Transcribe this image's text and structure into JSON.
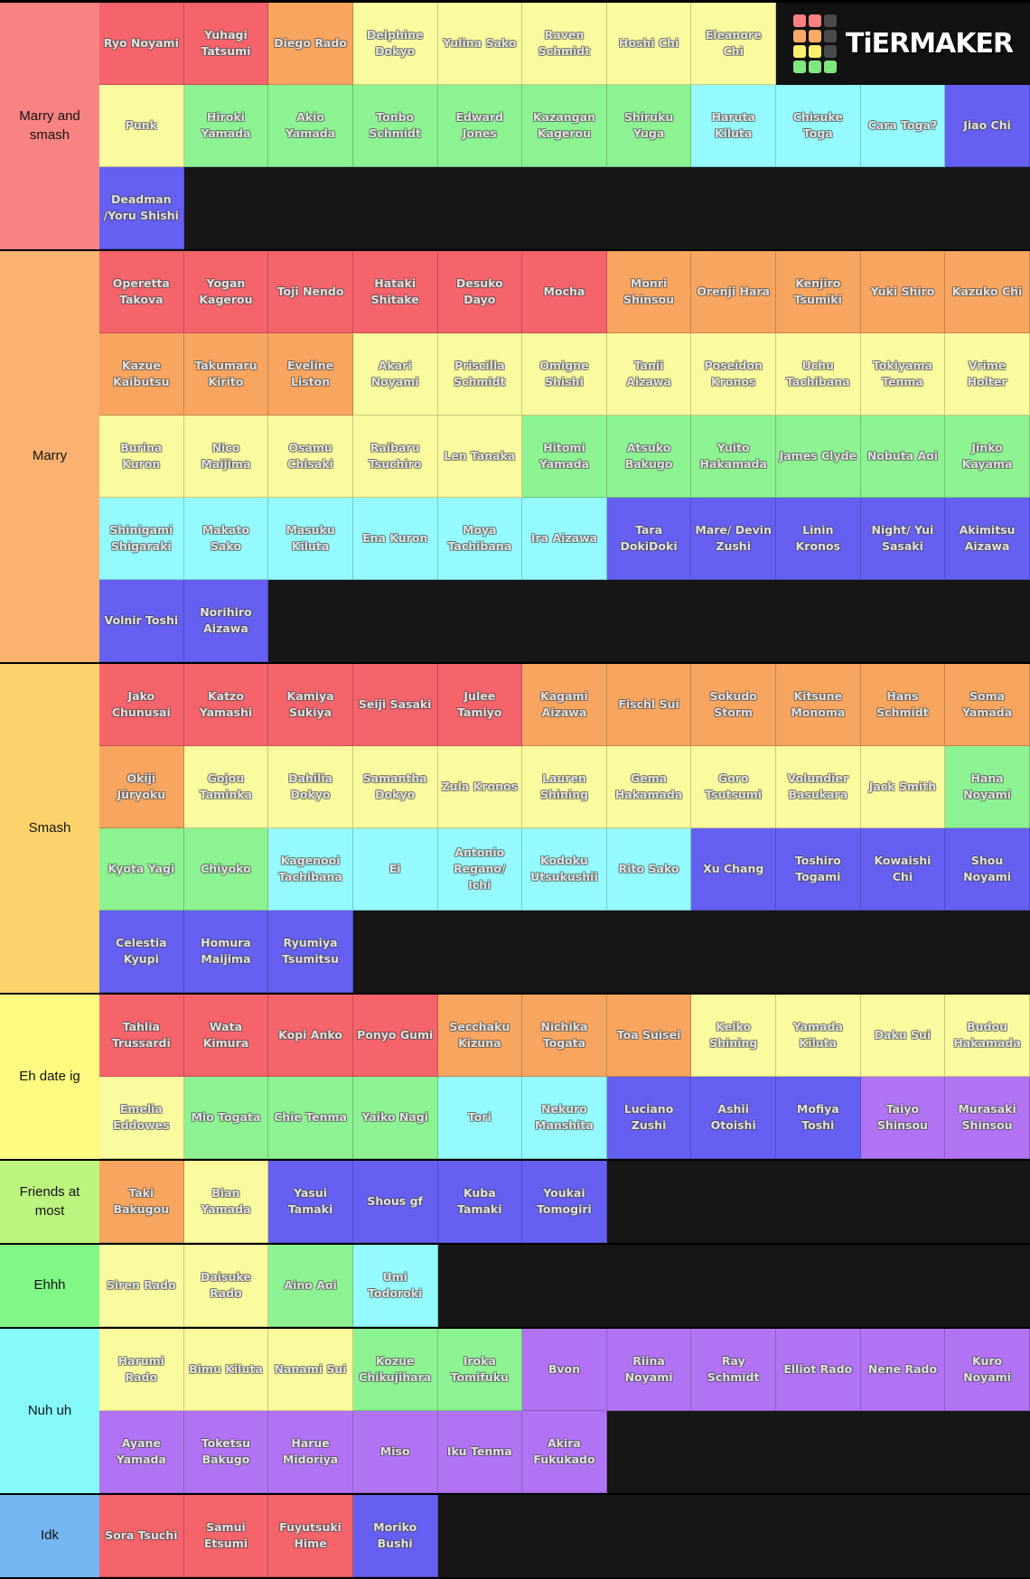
{
  "logo": {
    "text": "TiERMAKER",
    "grid": [
      "#f8807f",
      "#f8807f",
      "#4a4a4a",
      "#f9ab66",
      "#f9ab66",
      "#4a4a4a",
      "#f9ef6c",
      "#f9ef6c",
      "#4a4a4a",
      "#7ee87e",
      "#7ee87e",
      "#7ee87e"
    ]
  },
  "palette": {
    "red": "#f5636b",
    "orange": "#f8a55f",
    "yellow": "#fafa9e",
    "green": "#8df292",
    "cyan": "#94fafd",
    "blue": "#6560f1",
    "purple": "#b173f4"
  },
  "tiers": [
    {
      "label": "Marry and smash",
      "color": "#f98383",
      "rows": [
        [
          {
            "n": "Ryo Noyami",
            "c": "red"
          },
          {
            "n": "Yuhagi Tatsumi",
            "c": "red"
          },
          {
            "n": "Diego Rado",
            "c": "orange"
          },
          {
            "n": "Delphine Dokyo",
            "c": "yellow"
          },
          {
            "n": "Yulina Sako",
            "c": "yellow"
          },
          {
            "n": "Raven Schmidt",
            "c": "yellow"
          },
          {
            "n": "Hoshi Chi",
            "c": "yellow"
          },
          {
            "n": "Eleanore Chi",
            "c": "yellow"
          }
        ],
        [
          {
            "n": "Punk",
            "c": "yellow"
          },
          {
            "n": "Hiroki Yamada",
            "c": "green"
          },
          {
            "n": "Akio Yamada",
            "c": "green"
          },
          {
            "n": "Tonbo Schmidt",
            "c": "green"
          },
          {
            "n": "Edward Jones",
            "c": "green"
          },
          {
            "n": "Kazangan Kagerou",
            "c": "green"
          },
          {
            "n": "Shiruku Yuga",
            "c": "green"
          },
          {
            "n": "Haruta Kiluta",
            "c": "cyan"
          },
          {
            "n": "Chisuke Toga",
            "c": "cyan"
          },
          {
            "n": "Cara Toga?",
            "c": "cyan"
          },
          {
            "n": "Jiao Chi",
            "c": "blue"
          }
        ],
        [
          {
            "n": "Deadman /Yoru Shishi",
            "c": "blue"
          }
        ]
      ]
    },
    {
      "label": "Marry",
      "color": "#fbb271",
      "rows": [
        [
          {
            "n": "Operetta Takova",
            "c": "red"
          },
          {
            "n": "Yogan Kagerou",
            "c": "red"
          },
          {
            "n": "Toji Nendo",
            "c": "red"
          },
          {
            "n": "Hataki Shitake",
            "c": "red"
          },
          {
            "n": "Desuko Dayo",
            "c": "red"
          },
          {
            "n": "Mocha",
            "c": "red"
          },
          {
            "n": "Monri Shinsou",
            "c": "orange"
          },
          {
            "n": "Orenji Hara",
            "c": "orange"
          },
          {
            "n": "Kenjiro Tsumiki",
            "c": "orange"
          },
          {
            "n": "Yuki Shiro",
            "c": "orange"
          },
          {
            "n": "Kazuko Chi",
            "c": "orange"
          }
        ],
        [
          {
            "n": "Kazue Kaibutsu",
            "c": "orange"
          },
          {
            "n": "Takumaru Kirito",
            "c": "orange"
          },
          {
            "n": "Eveline Liston",
            "c": "orange"
          },
          {
            "n": "Akari Noyami",
            "c": "yellow"
          },
          {
            "n": "Priscilla Schmidt",
            "c": "yellow"
          },
          {
            "n": "Omigne Shishi",
            "c": "yellow"
          },
          {
            "n": "Tanii Aizawa",
            "c": "yellow"
          },
          {
            "n": "Poseidon Kronos",
            "c": "yellow"
          },
          {
            "n": "Uchu Tachibana",
            "c": "yellow"
          },
          {
            "n": "Tokiyama Tenma",
            "c": "yellow"
          },
          {
            "n": "Vrime Holter",
            "c": "yellow"
          }
        ],
        [
          {
            "n": "Burina Kuron",
            "c": "yellow"
          },
          {
            "n": "Nico Maijima",
            "c": "yellow"
          },
          {
            "n": "Osamu Chisaki",
            "c": "yellow"
          },
          {
            "n": "Raibaru Tsuchiro",
            "c": "yellow"
          },
          {
            "n": "Len Tanaka",
            "c": "yellow"
          },
          {
            "n": "Hitomi Yamada",
            "c": "green"
          },
          {
            "n": "Atsuko Bakugo",
            "c": "green"
          },
          {
            "n": "Yuito Hakamada",
            "c": "green"
          },
          {
            "n": "James Clyde",
            "c": "green"
          },
          {
            "n": "Nobuta Aoi",
            "c": "green"
          },
          {
            "n": "Jinko Kayama",
            "c": "green"
          }
        ],
        [
          {
            "n": "Shinigami Shigaraki",
            "c": "cyan"
          },
          {
            "n": "Makato Sako",
            "c": "cyan"
          },
          {
            "n": "Masuku Kiluta",
            "c": "cyan"
          },
          {
            "n": "Ena Kuron",
            "c": "cyan"
          },
          {
            "n": "Moya Tachibana",
            "c": "cyan"
          },
          {
            "n": "Ira Aizawa",
            "c": "cyan"
          },
          {
            "n": "Tara DokiDoki",
            "c": "blue"
          },
          {
            "n": "Mare/ Devin Zushi",
            "c": "blue"
          },
          {
            "n": "Linin Kronos",
            "c": "blue"
          },
          {
            "n": "Night/ Yui Sasaki",
            "c": "blue"
          },
          {
            "n": "Akimitsu Aizawa",
            "c": "blue"
          }
        ],
        [
          {
            "n": "Volnir Toshi",
            "c": "blue"
          },
          {
            "n": "Norihiro Aizawa",
            "c": "blue"
          }
        ]
      ]
    },
    {
      "label": "Smash",
      "color": "#fcd36b",
      "rows": [
        [
          {
            "n": "Jako Chunusai",
            "c": "red"
          },
          {
            "n": "Katzo Yamashi",
            "c": "red"
          },
          {
            "n": "Kamiya Sukiya",
            "c": "red"
          },
          {
            "n": "Seiji Sasaki",
            "c": "red"
          },
          {
            "n": "Julee Tamiyo",
            "c": "red"
          },
          {
            "n": "Kagami Aizawa",
            "c": "orange"
          },
          {
            "n": "Fischl Sui",
            "c": "orange"
          },
          {
            "n": "Sokudo Storm",
            "c": "orange"
          },
          {
            "n": "Kitsune Monoma",
            "c": "orange"
          },
          {
            "n": "Hans Schmidt",
            "c": "orange"
          },
          {
            "n": "Soma Yamada",
            "c": "orange"
          }
        ],
        [
          {
            "n": "Okiji Jūryoku",
            "c": "orange"
          },
          {
            "n": "Gojou Taminka",
            "c": "yellow"
          },
          {
            "n": "Dahilia Dokyo",
            "c": "yellow"
          },
          {
            "n": "Samantha Dokyo",
            "c": "yellow"
          },
          {
            "n": "Zula Kronos",
            "c": "yellow"
          },
          {
            "n": "Lauren Shining",
            "c": "yellow"
          },
          {
            "n": "Gema Hakamada",
            "c": "yellow"
          },
          {
            "n": "Goro Tsutsumi",
            "c": "yellow"
          },
          {
            "n": "Volundier Basukara",
            "c": "yellow"
          },
          {
            "n": "Jack Smith",
            "c": "yellow"
          },
          {
            "n": "Hana Noyami",
            "c": "green"
          }
        ],
        [
          {
            "n": "Kyota Yagi",
            "c": "green"
          },
          {
            "n": "Chiyoko",
            "c": "green"
          },
          {
            "n": "Kagenooi Tachibana",
            "c": "cyan"
          },
          {
            "n": "Ei",
            "c": "cyan"
          },
          {
            "n": "Antonio Regano/ Ichi",
            "c": "cyan"
          },
          {
            "n": "Kodoku Utsukushii",
            "c": "cyan"
          },
          {
            "n": "Rito Sako",
            "c": "cyan"
          },
          {
            "n": "Xu Chang",
            "c": "blue"
          },
          {
            "n": "Toshiro Togami",
            "c": "blue"
          },
          {
            "n": "Kowaishi Chi",
            "c": "blue"
          },
          {
            "n": "Shou Noyami",
            "c": "blue"
          }
        ],
        [
          {
            "n": "Celestia Kyupi",
            "c": "blue"
          },
          {
            "n": "Homura Maijima",
            "c": "blue"
          },
          {
            "n": "Ryumiya Tsumitsu",
            "c": "blue"
          }
        ]
      ]
    },
    {
      "label": "Eh date ig",
      "color": "#fcfa80",
      "rows": [
        [
          {
            "n": "Tahlia Trussardi",
            "c": "red"
          },
          {
            "n": "Wata Kimura",
            "c": "red"
          },
          {
            "n": "Kopi Anko",
            "c": "red"
          },
          {
            "n": "Ponyo Gumi",
            "c": "red"
          },
          {
            "n": "Secchaku Kizuna",
            "c": "orange"
          },
          {
            "n": "Nichika Togata",
            "c": "orange"
          },
          {
            "n": "Toa Suisei",
            "c": "orange"
          },
          {
            "n": "Keiko Shining",
            "c": "yellow"
          },
          {
            "n": "Yamada Kiluta",
            "c": "yellow"
          },
          {
            "n": "Daku Sui",
            "c": "yellow"
          },
          {
            "n": "Budou Hakamada",
            "c": "yellow"
          }
        ],
        [
          {
            "n": "Emelia Eddowes",
            "c": "yellow"
          },
          {
            "n": "Mio Togata",
            "c": "green"
          },
          {
            "n": "Chie Tenma",
            "c": "green"
          },
          {
            "n": "Yaiko Nagi",
            "c": "green"
          },
          {
            "n": "Tori",
            "c": "cyan"
          },
          {
            "n": "Nekuro Manshita",
            "c": "cyan"
          },
          {
            "n": "Luciano Zushi",
            "c": "blue"
          },
          {
            "n": "Ashii Otoishi",
            "c": "blue"
          },
          {
            "n": "Mofiya Toshi",
            "c": "blue"
          },
          {
            "n": "Taiyo Shinsou",
            "c": "purple"
          },
          {
            "n": "Murasaki Shinsou",
            "c": "purple"
          }
        ]
      ]
    },
    {
      "label": "Friends at most",
      "color": "#bdf37f",
      "rows": [
        [
          {
            "n": "Taki Bakugou",
            "c": "orange"
          },
          {
            "n": "Bian Yamada",
            "c": "yellow"
          },
          {
            "n": "Yasui Tamaki",
            "c": "blue"
          },
          {
            "n": "Shous gf",
            "c": "blue"
          },
          {
            "n": "Kuba Tamaki",
            "c": "blue"
          },
          {
            "n": "Youkai Tomogiri",
            "c": "blue"
          }
        ]
      ]
    },
    {
      "label": "Ehhh",
      "color": "#80f787",
      "rows": [
        [
          {
            "n": "Siren Rado",
            "c": "yellow"
          },
          {
            "n": "Daisuke Rado",
            "c": "yellow"
          },
          {
            "n": "Aino Aoi",
            "c": "green"
          },
          {
            "n": "Umi Todoroki",
            "c": "cyan"
          }
        ]
      ]
    },
    {
      "label": "Nuh uh",
      "color": "#86f9f9",
      "rows": [
        [
          {
            "n": "Harumi Rado",
            "c": "yellow"
          },
          {
            "n": "Bimu Kiluta",
            "c": "yellow"
          },
          {
            "n": "Nanami Sui",
            "c": "yellow"
          },
          {
            "n": "Kozue Chikujihara",
            "c": "green"
          },
          {
            "n": "Iroka Tomifuku",
            "c": "green"
          },
          {
            "n": "Bvon",
            "c": "purple"
          },
          {
            "n": "Riina Noyami",
            "c": "purple"
          },
          {
            "n": "Ray Schmidt",
            "c": "purple"
          },
          {
            "n": "Elliot Rado",
            "c": "purple"
          },
          {
            "n": "Nene Rado",
            "c": "purple"
          },
          {
            "n": "Kuro Noyami",
            "c": "purple"
          }
        ],
        [
          {
            "n": "Ayane Yamada",
            "c": "purple"
          },
          {
            "n": "Toketsu Bakugo",
            "c": "purple"
          },
          {
            "n": "Harue Midoriya",
            "c": "purple"
          },
          {
            "n": "Miso",
            "c": "purple"
          },
          {
            "n": "Iku Tenma",
            "c": "purple"
          },
          {
            "n": "Akira Fukukado",
            "c": "purple"
          }
        ]
      ]
    },
    {
      "label": "Idk",
      "color": "#75b6f2",
      "rows": [
        [
          {
            "n": "Sora Tsuchi",
            "c": "red"
          },
          {
            "n": "Samui Etsumi",
            "c": "red"
          },
          {
            "n": "Fuyutsuki Hime",
            "c": "red"
          },
          {
            "n": "Moriko Bushi",
            "c": "blue"
          }
        ]
      ]
    }
  ]
}
